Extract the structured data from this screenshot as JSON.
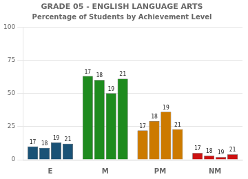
{
  "chart_data": {
    "type": "bar",
    "title": "GRADE 05 - ENGLISH LANGUAGE ARTS",
    "subtitle": "Percentage of Students by Achievement Level",
    "categories": [
      "E",
      "M",
      "PM",
      "NM"
    ],
    "series": [
      {
        "name": "17",
        "values": [
          10,
          63,
          22,
          5
        ],
        "colors": [
          "#1a5276",
          "#1e8b1e",
          "#cc7a00",
          "#cc1111"
        ]
      },
      {
        "name": "18",
        "values": [
          9,
          60,
          29,
          3
        ],
        "colors": [
          "#1a5276",
          "#1e8b1e",
          "#cc7a00",
          "#cc1111"
        ]
      },
      {
        "name": "19",
        "values": [
          13,
          50,
          36,
          2
        ],
        "colors": [
          "#1a5276",
          "#1e8b1e",
          "#cc7a00",
          "#cc1111"
        ]
      },
      {
        "name": "21",
        "values": [
          12,
          61,
          23,
          4
        ],
        "colors": [
          "#1a5276",
          "#1e8b1e",
          "#cc7a00",
          "#cc1111"
        ]
      }
    ],
    "ylim": [
      0,
      100
    ],
    "yticks": [
      0,
      25,
      50,
      75,
      100
    ],
    "grid": true
  }
}
